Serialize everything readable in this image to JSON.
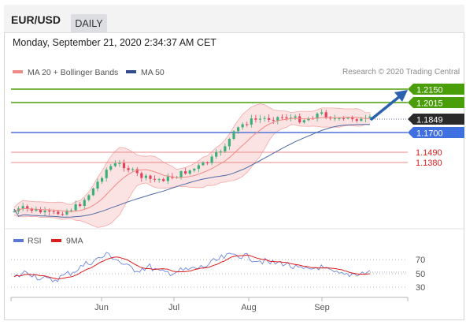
{
  "header": {
    "symbol": "EUR/USD",
    "timeframe": "DAILY"
  },
  "timestamp": "Monday, September 21, 2020 2:34:37 AM CET",
  "legend": {
    "bb_label": "MA 20 + Bollinger Bands",
    "ma50_label": "MA 50",
    "research": "Research © 2020 Trading Central"
  },
  "colors": {
    "up": "#3bb07a",
    "down": "#e0425a",
    "ma50": "#4d6aa5",
    "bb": "#f07878",
    "bb_fill": "#fbd9d9",
    "resistance": "#4a9e0a",
    "support_blue": "#4f74d8",
    "support_red": "#e06666",
    "arrow": "#2c62ad",
    "rsi": "#5a78d4",
    "rsi_ma": "#d91e1e"
  },
  "levels": [
    {
      "value": "1.2150",
      "kind": "resistance"
    },
    {
      "value": "1.2015",
      "kind": "resistance"
    },
    {
      "value": "1.1849",
      "kind": "last"
    },
    {
      "value": "1.1700",
      "kind": "pivot"
    },
    {
      "value": "1.1490",
      "kind": "support"
    },
    {
      "value": "1.1380",
      "kind": "support"
    }
  ],
  "rsi_legend": {
    "rsi": "RSI",
    "ma": "9MA"
  },
  "rsi_levels": [
    "70",
    "50",
    "30"
  ],
  "months": [
    "Jun",
    "Jul",
    "Aug",
    "Sep"
  ]
}
